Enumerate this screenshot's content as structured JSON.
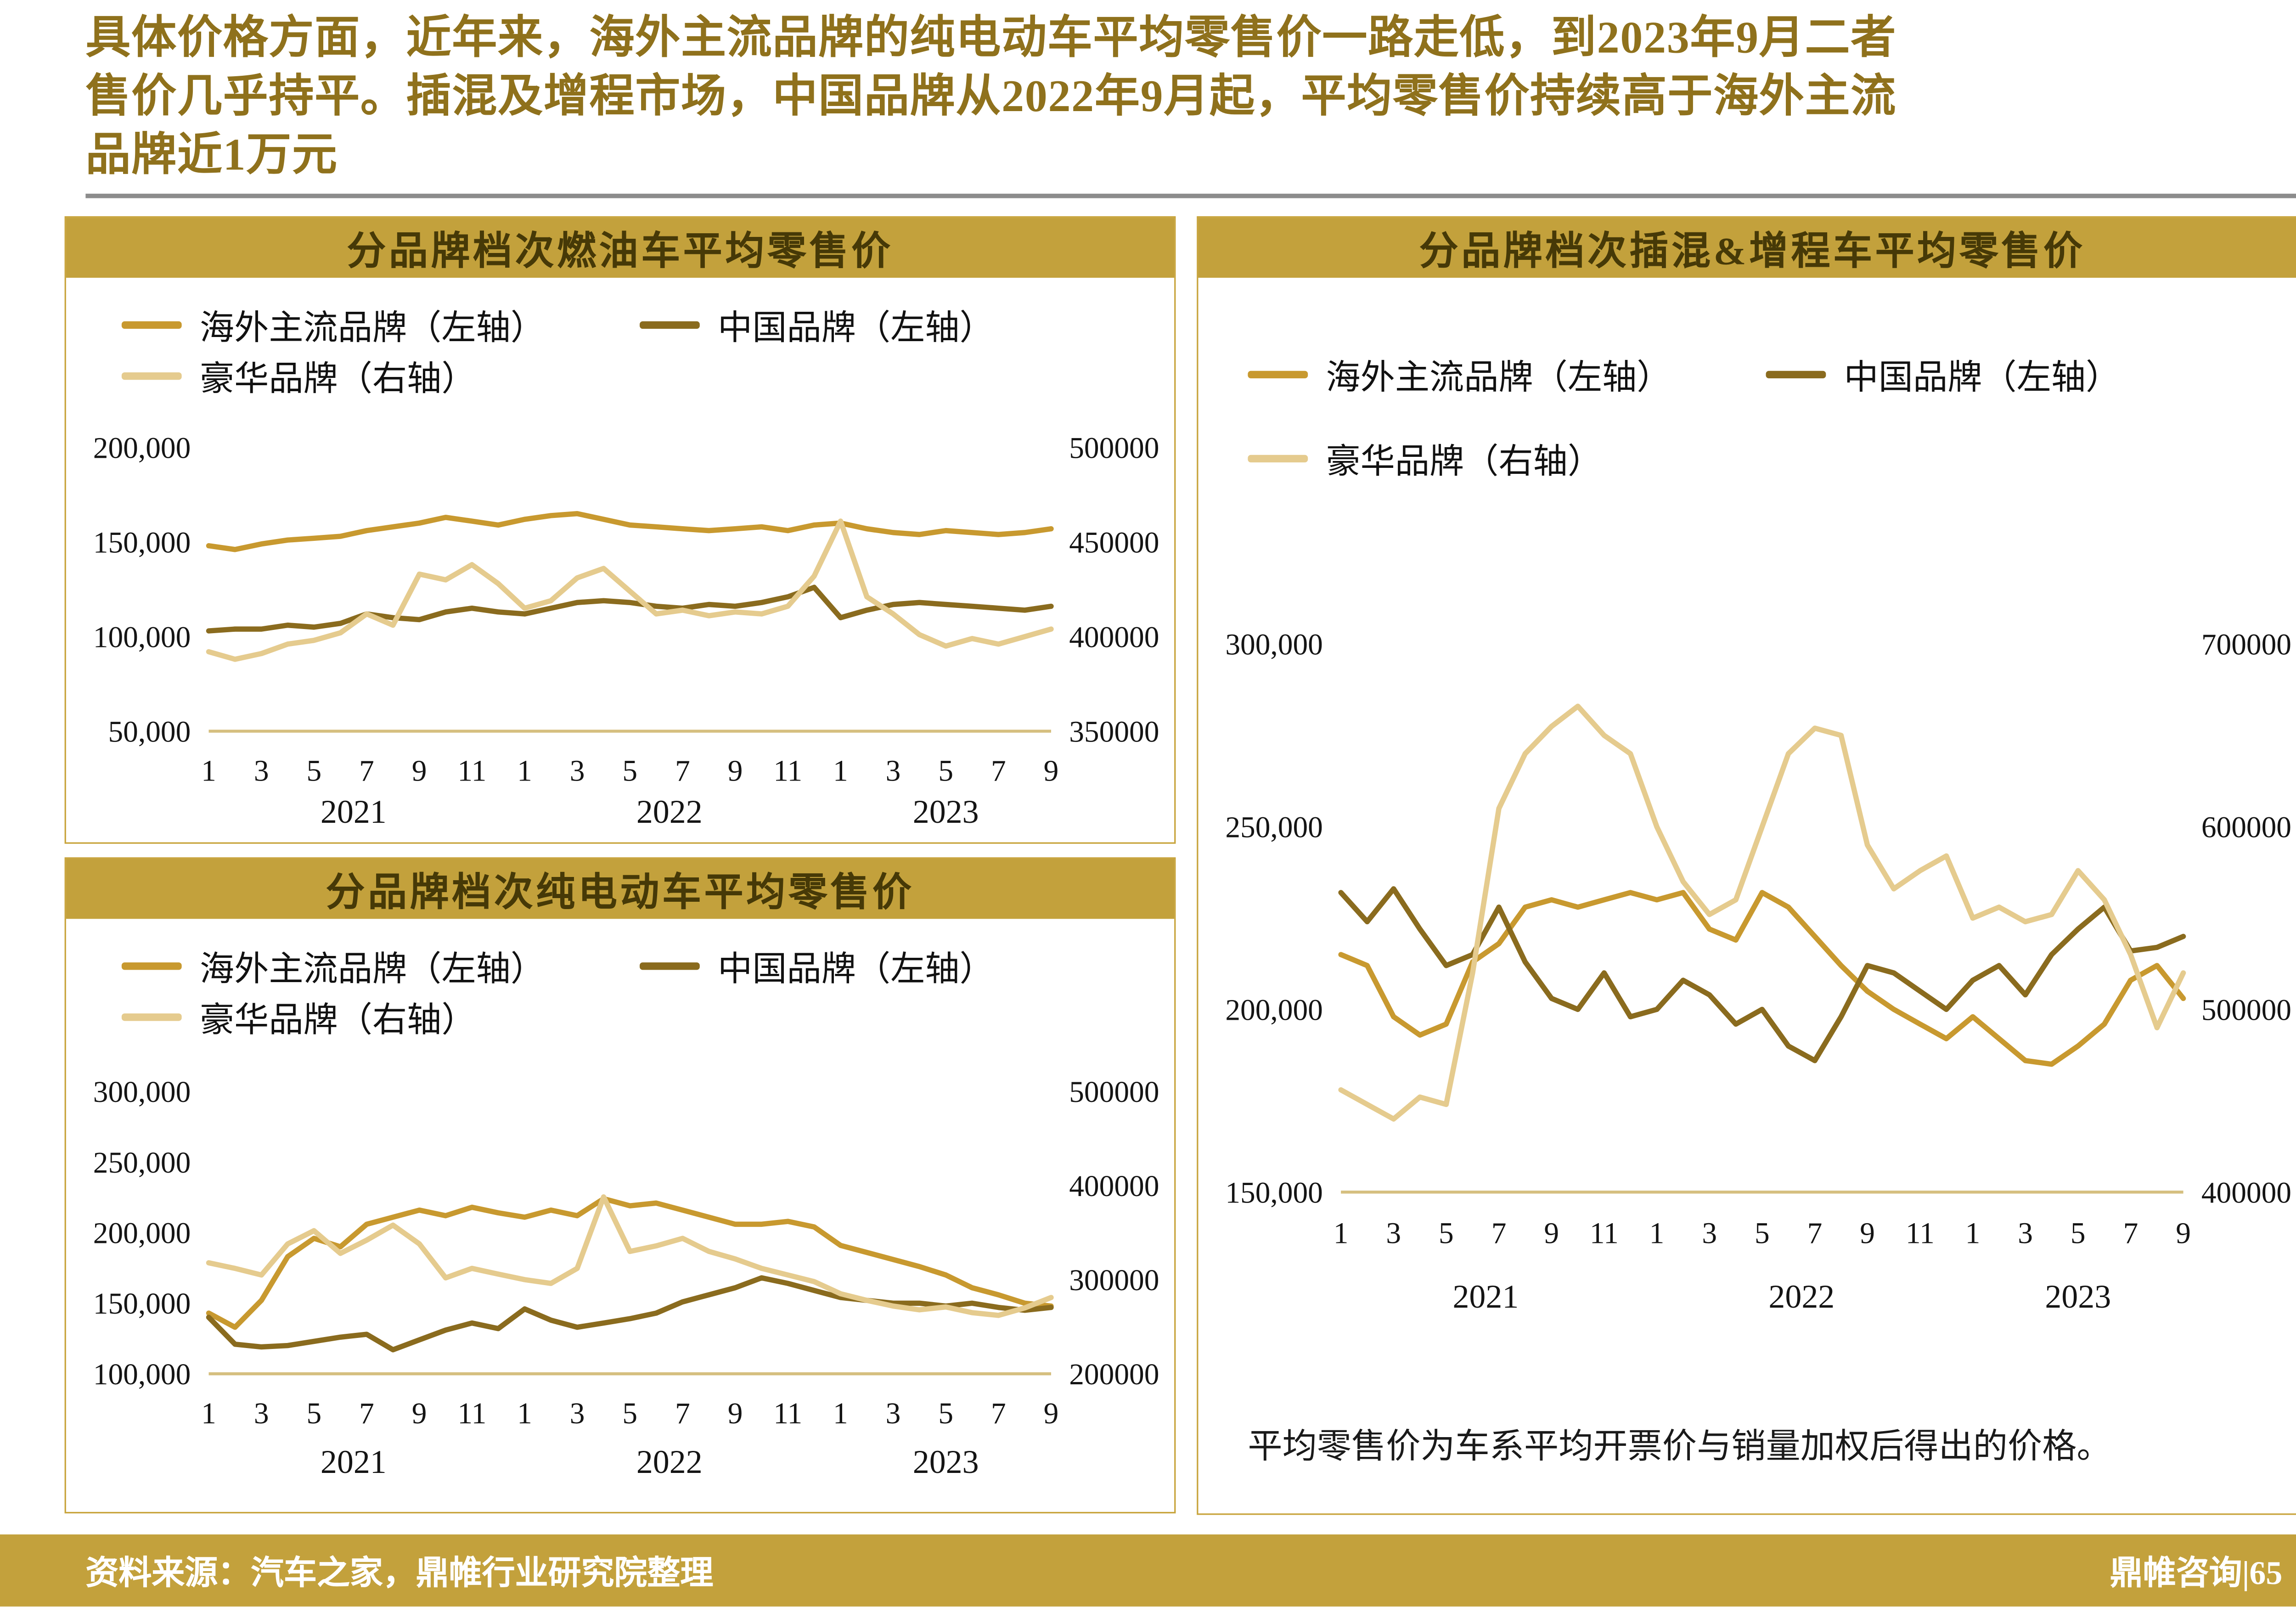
{
  "header": {
    "lines": [
      "具体价格方面，近年来，海外主流品牌的纯电动车平均零售价一路走低，到2023年9月二者",
      "售价几乎持平。插混及增程市场，中国品牌从2022年9月起，平均零售价持续高于海外主流",
      "品牌近1万元"
    ]
  },
  "note": "平均零售价为车系平均开票价与销量加权后得出的价格。",
  "footer": {
    "source": "资料来源：汽车之家，鼎帷行业研究院整理",
    "page": "鼎帷咨询|65"
  },
  "colors": {
    "accent_gold": "#C3A13C",
    "header_text": "#8F711C",
    "series_overseas": "#C8992F",
    "series_china": "#8A6B1E",
    "series_luxury": "#E5CB8E",
    "baseline": "#D5BF7F",
    "footer_text": "#FFFFFF"
  },
  "chart_data": [
    {
      "type": "line",
      "title": "分品牌档次燃油车平均零售价",
      "x_tick_step": 2,
      "x_tick_labels": [
        "1",
        "3",
        "5",
        "7",
        "9",
        "11",
        "1",
        "3",
        "5",
        "7",
        "9",
        "11",
        "1",
        "3",
        "5",
        "7",
        "9"
      ],
      "years": [
        {
          "label": "2021",
          "from": 0,
          "to": 11
        },
        {
          "label": "2022",
          "from": 12,
          "to": 23
        },
        {
          "label": "2023",
          "from": 24,
          "to": 32
        }
      ],
      "left_axis": {
        "min": 50000,
        "max": 200000,
        "ticks": [
          200000,
          150000,
          100000,
          50000
        ],
        "format": "comma"
      },
      "right_axis": {
        "min": 350000,
        "max": 500000,
        "ticks": [
          500000,
          450000,
          400000,
          350000
        ],
        "format": "plain"
      },
      "series": [
        {
          "name": "海外主流品牌（左轴）",
          "axis": "left",
          "color": "#C8992F",
          "values": [
            148000,
            146000,
            149000,
            151000,
            152000,
            153000,
            156000,
            158000,
            160000,
            163000,
            161000,
            159000,
            162000,
            164000,
            165000,
            162000,
            159000,
            158000,
            157000,
            156000,
            157000,
            158000,
            156000,
            159000,
            160000,
            157000,
            155000,
            154000,
            156000,
            155000,
            154000,
            155000,
            157000
          ]
        },
        {
          "name": "中国品牌（左轴）",
          "axis": "left",
          "color": "#8A6B1E",
          "values": [
            103000,
            104000,
            104000,
            106000,
            105000,
            107000,
            112000,
            110000,
            109000,
            113000,
            115000,
            113000,
            112000,
            115000,
            118000,
            119000,
            118000,
            116000,
            115000,
            117000,
            116000,
            118000,
            121000,
            126000,
            110000,
            114000,
            117000,
            118000,
            117000,
            116000,
            115000,
            114000,
            116000
          ]
        },
        {
          "name": "豪华品牌（右轴）",
          "axis": "right",
          "color": "#E5CB8E",
          "values": [
            392000,
            388000,
            391000,
            396000,
            398000,
            402000,
            412000,
            406000,
            433000,
            430000,
            438000,
            428000,
            415000,
            419000,
            431000,
            436000,
            424000,
            412000,
            414000,
            411000,
            413000,
            412000,
            416000,
            432000,
            461000,
            421000,
            412000,
            401000,
            395000,
            399000,
            396000,
            400000,
            404000
          ]
        }
      ]
    },
    {
      "type": "line",
      "title": "分品牌档次纯电动车平均零售价",
      "x_tick_step": 2,
      "x_tick_labels": [
        "1",
        "3",
        "5",
        "7",
        "9",
        "11",
        "1",
        "3",
        "5",
        "7",
        "9",
        "11",
        "1",
        "3",
        "5",
        "7",
        "9"
      ],
      "years": [
        {
          "label": "2021",
          "from": 0,
          "to": 11
        },
        {
          "label": "2022",
          "from": 12,
          "to": 23
        },
        {
          "label": "2023",
          "from": 24,
          "to": 32
        }
      ],
      "left_axis": {
        "min": 100000,
        "max": 300000,
        "ticks": [
          300000,
          250000,
          200000,
          150000,
          100000
        ],
        "format": "comma"
      },
      "right_axis": {
        "min": 200000,
        "max": 500000,
        "ticks": [
          500000,
          400000,
          300000,
          200000
        ],
        "format": "plain"
      },
      "series": [
        {
          "name": "海外主流品牌（左轴）",
          "axis": "left",
          "color": "#C8992F",
          "values": [
            143000,
            133000,
            152000,
            183000,
            196000,
            190000,
            206000,
            211000,
            216000,
            212000,
            218000,
            214000,
            211000,
            216000,
            212000,
            224000,
            219000,
            221000,
            216000,
            211000,
            206000,
            206000,
            208000,
            204000,
            191000,
            186000,
            181000,
            176000,
            170000,
            161000,
            156000,
            150000,
            148000
          ]
        },
        {
          "name": "中国品牌（左轴）",
          "axis": "left",
          "color": "#8A6B1E",
          "values": [
            140000,
            121000,
            119000,
            120000,
            123000,
            126000,
            128000,
            117000,
            124000,
            131000,
            136000,
            132000,
            146000,
            138000,
            133000,
            136000,
            139000,
            143000,
            151000,
            156000,
            161000,
            168000,
            164000,
            159000,
            154000,
            152000,
            150000,
            150000,
            148000,
            150000,
            147000,
            145000,
            147000
          ]
        },
        {
          "name": "豪华品牌（右轴）",
          "axis": "right",
          "color": "#E5CB8E",
          "values": [
            318000,
            312000,
            305000,
            338000,
            352000,
            328000,
            342000,
            358000,
            338000,
            302000,
            312000,
            306000,
            300000,
            296000,
            312000,
            388000,
            330000,
            336000,
            344000,
            330000,
            322000,
            312000,
            305000,
            298000,
            285000,
            278000,
            272000,
            268000,
            271000,
            265000,
            262000,
            270000,
            281000
          ]
        }
      ]
    },
    {
      "type": "line",
      "title": "分品牌档次插混&增程车平均零售价",
      "x_tick_step": 2,
      "x_tick_labels": [
        "1",
        "3",
        "5",
        "7",
        "9",
        "11",
        "1",
        "3",
        "5",
        "7",
        "9",
        "11",
        "1",
        "3",
        "5",
        "7",
        "9"
      ],
      "years": [
        {
          "label": "2021",
          "from": 0,
          "to": 11
        },
        {
          "label": "2022",
          "from": 12,
          "to": 23
        },
        {
          "label": "2023",
          "from": 24,
          "to": 32
        }
      ],
      "left_axis": {
        "min": 150000,
        "max": 300000,
        "ticks": [
          300000,
          250000,
          200000,
          150000
        ],
        "format": "comma"
      },
      "right_axis": {
        "min": 400000,
        "max": 700000,
        "ticks": [
          700000,
          600000,
          500000,
          400000
        ],
        "format": "plain"
      },
      "series": [
        {
          "name": "海外主流品牌（左轴）",
          "axis": "left",
          "color": "#C8992F",
          "values": [
            215000,
            212000,
            198000,
            193000,
            196000,
            213000,
            218000,
            228000,
            230000,
            228000,
            230000,
            232000,
            230000,
            232000,
            222000,
            219000,
            232000,
            228000,
            220000,
            212000,
            205000,
            200000,
            196000,
            192000,
            198000,
            192000,
            186000,
            185000,
            190000,
            196000,
            208000,
            212000,
            203000
          ]
        },
        {
          "name": "中国品牌（左轴）",
          "axis": "left",
          "color": "#8A6B1E",
          "values": [
            232000,
            224000,
            233000,
            222000,
            212000,
            215000,
            228000,
            213000,
            203000,
            200000,
            210000,
            198000,
            200000,
            208000,
            204000,
            196000,
            200000,
            190000,
            186000,
            198000,
            212000,
            210000,
            205000,
            200000,
            208000,
            212000,
            204000,
            215000,
            222000,
            228000,
            216000,
            217000,
            220000
          ]
        },
        {
          "name": "豪华品牌（右轴）",
          "axis": "right",
          "color": "#E5CB8E",
          "values": [
            456000,
            448000,
            440000,
            452000,
            448000,
            520000,
            610000,
            640000,
            655000,
            666000,
            650000,
            640000,
            600000,
            570000,
            552000,
            560000,
            600000,
            640000,
            654000,
            650000,
            590000,
            566000,
            576000,
            584000,
            550000,
            556000,
            548000,
            552000,
            576000,
            560000,
            530000,
            490000,
            520000
          ]
        }
      ]
    }
  ]
}
